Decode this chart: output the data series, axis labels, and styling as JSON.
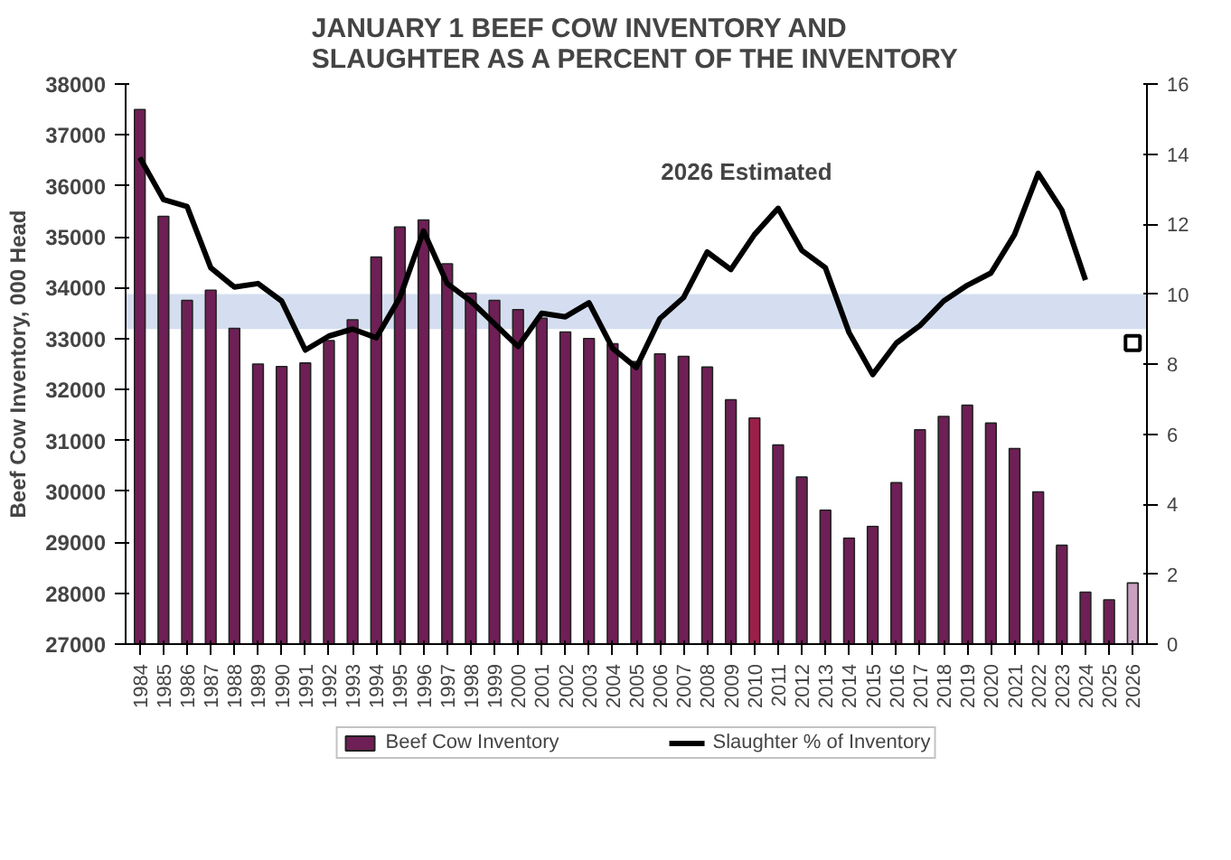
{
  "chart_data": {
    "type": "bar",
    "title": "JANUARY 1 BEEF COW INVENTORY AND\nSLAUGHTER AS A PERCENT OF THE INVENTORY",
    "ylabel": "Beef Cow Inventory, 000 Head",
    "categories": [
      "1984",
      "1985",
      "1986",
      "1987",
      "1988",
      "1989",
      "1990",
      "1991",
      "1992",
      "1993",
      "1994",
      "1995",
      "1996",
      "1997",
      "1998",
      "1999",
      "2000",
      "2001",
      "2002",
      "2003",
      "2004",
      "2005",
      "2006",
      "2007",
      "2008",
      "2009",
      "2010",
      "2011",
      "2012",
      "2013",
      "2014",
      "2015",
      "2016",
      "2017",
      "2018",
      "2019",
      "2020",
      "2021",
      "2022",
      "2023",
      "2024",
      "2025",
      "2026"
    ],
    "series": [
      {
        "name": "Beef Cow Inventory",
        "color": "#6e1f55",
        "colors": [
          "#6e1f55",
          "#6e1f55",
          "#6e1f55",
          "#6e1f55",
          "#6e1f55",
          "#6e1f55",
          "#6e1f55",
          "#6e1f55",
          "#6e1f55",
          "#6e1f55",
          "#6e1f55",
          "#6e1f55",
          "#6e1f55",
          "#6e1f55",
          "#6e1f55",
          "#6e1f55",
          "#6e1f55",
          "#6e1f55",
          "#6e1f55",
          "#6e1f55",
          "#6e1f55",
          "#6e1f55",
          "#6e1f55",
          "#6e1f55",
          "#6e1f55",
          "#6e1f55",
          "#9c1f4a",
          "#6e1f55",
          "#6e1f55",
          "#6e1f55",
          "#6e1f55",
          "#6e1f55",
          "#6e1f55",
          "#6e1f55",
          "#6e1f55",
          "#6e1f55",
          "#6e1f55",
          "#6e1f55",
          "#6e1f55",
          "#6e1f55",
          "#6e1f55",
          "#6e1f55",
          "#c9a0c0"
        ],
        "values": [
          37500,
          35400,
          33750,
          33950,
          33200,
          32500,
          32450,
          32520,
          32960,
          33370,
          34600,
          35190,
          35330,
          34470,
          33890,
          33750,
          33570,
          33400,
          33130,
          33000,
          32900,
          32550,
          32700,
          32650,
          32440,
          31800,
          31440,
          30910,
          30280,
          29630,
          29080,
          29310,
          30170,
          31210,
          31470,
          31690,
          31340,
          30840,
          29990,
          28940,
          28020,
          27870,
          28200
        ]
      },
      {
        "name": "Slaughter % of Inventory",
        "type": "line",
        "axis": "y2",
        "color": "#000000",
        "values": [
          13.9,
          12.7,
          12.5,
          10.75,
          10.2,
          10.3,
          9.8,
          8.4,
          8.8,
          9.0,
          8.75,
          9.9,
          11.8,
          10.3,
          9.8,
          9.15,
          8.5,
          9.45,
          9.35,
          9.75,
          8.45,
          7.9,
          9.3,
          9.9,
          11.2,
          10.7,
          11.7,
          12.45,
          11.25,
          10.75,
          8.9,
          7.7,
          8.6,
          9.1,
          9.8,
          10.25,
          10.6,
          11.7,
          13.45,
          12.4,
          10.4,
          null,
          null
        ]
      },
      {
        "type": "scatter",
        "axis": "y2",
        "marker": "square",
        "color": "#000000",
        "values": [
          null,
          null,
          null,
          null,
          null,
          null,
          null,
          null,
          null,
          null,
          null,
          null,
          null,
          null,
          null,
          null,
          null,
          null,
          null,
          null,
          null,
          null,
          null,
          null,
          null,
          null,
          null,
          null,
          null,
          null,
          null,
          null,
          null,
          null,
          null,
          null,
          null,
          null,
          null,
          null,
          null,
          null,
          8.6
        ]
      }
    ],
    "ylim": [
      27000,
      38000
    ],
    "yticks": [
      27000,
      28000,
      29000,
      30000,
      31000,
      32000,
      33000,
      34000,
      35000,
      36000,
      37000,
      38000
    ],
    "y2lim": [
      0,
      16
    ],
    "y2ticks": [
      0,
      2,
      4,
      6,
      8,
      10,
      12,
      14,
      16
    ],
    "bands": [
      {
        "axis": "y2",
        "from": 9,
        "to": 10,
        "color": "#cfdaee"
      }
    ],
    "annotations": [
      "2026  Estimated"
    ],
    "legend": "bottom",
    "grid": false
  }
}
